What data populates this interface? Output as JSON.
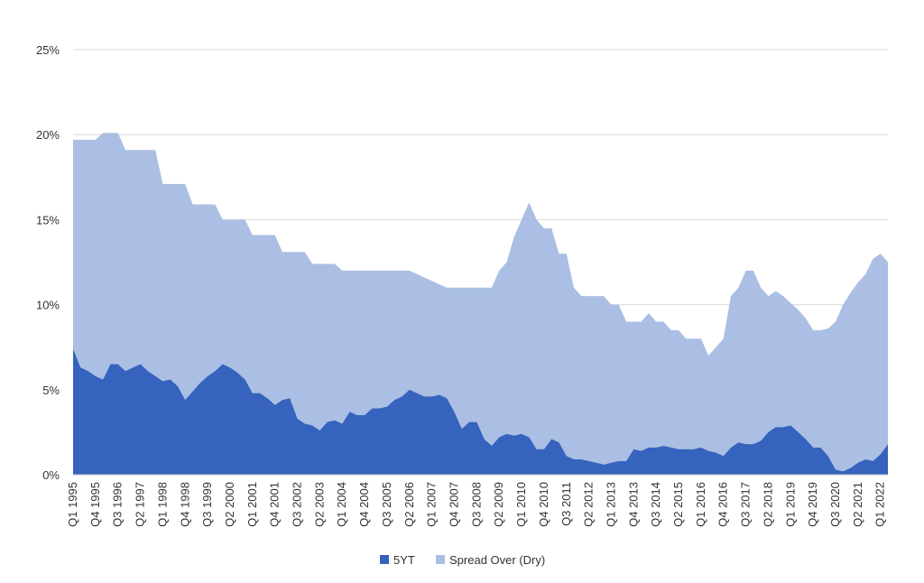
{
  "chart_data": {
    "type": "area",
    "stacked": true,
    "grid": true,
    "legend": "bottom",
    "ylim": [
      0,
      25
    ],
    "yticks": [
      "0%",
      "5%",
      "10%",
      "15%",
      "20%",
      "25%"
    ],
    "ytick_values": [
      0,
      5,
      10,
      15,
      20,
      25
    ],
    "x_tick_labels": [
      "Q1 1995",
      "Q4 1995",
      "Q3 1996",
      "Q2 1997",
      "Q1 1998",
      "Q4 1998",
      "Q3 1999",
      "Q2 2000",
      "Q1 2001",
      "Q4 2001",
      "Q3 2002",
      "Q2 2003",
      "Q1 2004",
      "Q4 2004",
      "Q3 2005",
      "Q2 2006",
      "Q1 2007",
      "Q4 2007",
      "Q3 2008",
      "Q2 2009",
      "Q1 2010",
      "Q4 2010",
      "Q3 2011",
      "Q2 2012",
      "Q1 2013",
      "Q4 2013",
      "Q3 2014",
      "Q2 2015",
      "Q1 2016",
      "Q4 2016",
      "Q3 2017",
      "Q2 2018",
      "Q1 2019",
      "Q4 2019",
      "Q3 2020",
      "Q2 2021",
      "Q1 2022"
    ],
    "series": [
      {
        "name": "5YT",
        "color": "#3563bd",
        "values": [
          7.4,
          6.3,
          6.1,
          5.8,
          5.6,
          6.5,
          6.5,
          6.1,
          6.3,
          6.5,
          6.1,
          5.8,
          5.5,
          5.6,
          5.2,
          4.4,
          4.9,
          5.4,
          5.8,
          6.1,
          6.5,
          6.3,
          6.0,
          5.6,
          4.8,
          4.8,
          4.5,
          4.1,
          4.4,
          4.5,
          3.3,
          3.0,
          2.9,
          2.6,
          3.1,
          3.2,
          3.0,
          3.7,
          3.5,
          3.5,
          3.9,
          3.9,
          4.0,
          4.4,
          4.6,
          5.0,
          4.8,
          4.6,
          4.6,
          4.7,
          4.5,
          3.7,
          2.7,
          3.1,
          3.1,
          2.1,
          1.7,
          2.2,
          2.4,
          2.3,
          2.4,
          2.2,
          1.5,
          1.5,
          2.1,
          1.9,
          1.1,
          0.9,
          0.9,
          0.8,
          0.7,
          0.6,
          0.7,
          0.8,
          0.8,
          1.5,
          1.4,
          1.6,
          1.6,
          1.7,
          1.6,
          1.5,
          1.5,
          1.5,
          1.6,
          1.4,
          1.3,
          1.1,
          1.6,
          1.9,
          1.8,
          1.8,
          2.0,
          2.5,
          2.8,
          2.8,
          2.9,
          2.5,
          2.1,
          1.6,
          1.6,
          1.1,
          0.3,
          0.2,
          0.4,
          0.7,
          0.9,
          0.8,
          1.2,
          1.8
        ]
      },
      {
        "name": "Spread Over (Dry)",
        "color": "#abbfe4",
        "values": [
          12.3,
          13.4,
          13.6,
          13.9,
          14.5,
          13.6,
          13.6,
          13.0,
          12.8,
          12.6,
          13.0,
          13.3,
          11.6,
          11.5,
          11.9,
          12.7,
          11.0,
          10.5,
          10.1,
          9.8,
          8.5,
          8.7,
          9.0,
          9.4,
          9.3,
          9.3,
          9.6,
          10.0,
          8.7,
          8.6,
          9.8,
          10.1,
          9.5,
          9.8,
          9.3,
          9.2,
          9.0,
          8.3,
          8.5,
          8.5,
          8.1,
          8.1,
          8.0,
          7.6,
          7.4,
          7.0,
          7.0,
          7.0,
          6.8,
          6.5,
          6.5,
          7.3,
          8.3,
          7.9,
          7.9,
          8.9,
          9.3,
          9.8,
          10.1,
          11.7,
          12.6,
          13.8,
          13.5,
          13.0,
          12.4,
          11.1,
          11.9,
          10.1,
          9.6,
          9.7,
          9.8,
          9.9,
          9.3,
          9.2,
          8.2,
          7.5,
          7.6,
          7.9,
          7.4,
          7.3,
          6.9,
          7.0,
          6.5,
          6.5,
          6.4,
          5.6,
          6.2,
          6.9,
          8.9,
          9.1,
          10.2,
          10.2,
          9.0,
          8.0,
          8.0,
          7.7,
          7.2,
          7.2,
          7.1,
          6.9,
          6.9,
          7.5,
          8.7,
          9.8,
          10.3,
          10.6,
          10.9,
          11.9,
          11.8,
          10.7
        ]
      }
    ]
  }
}
